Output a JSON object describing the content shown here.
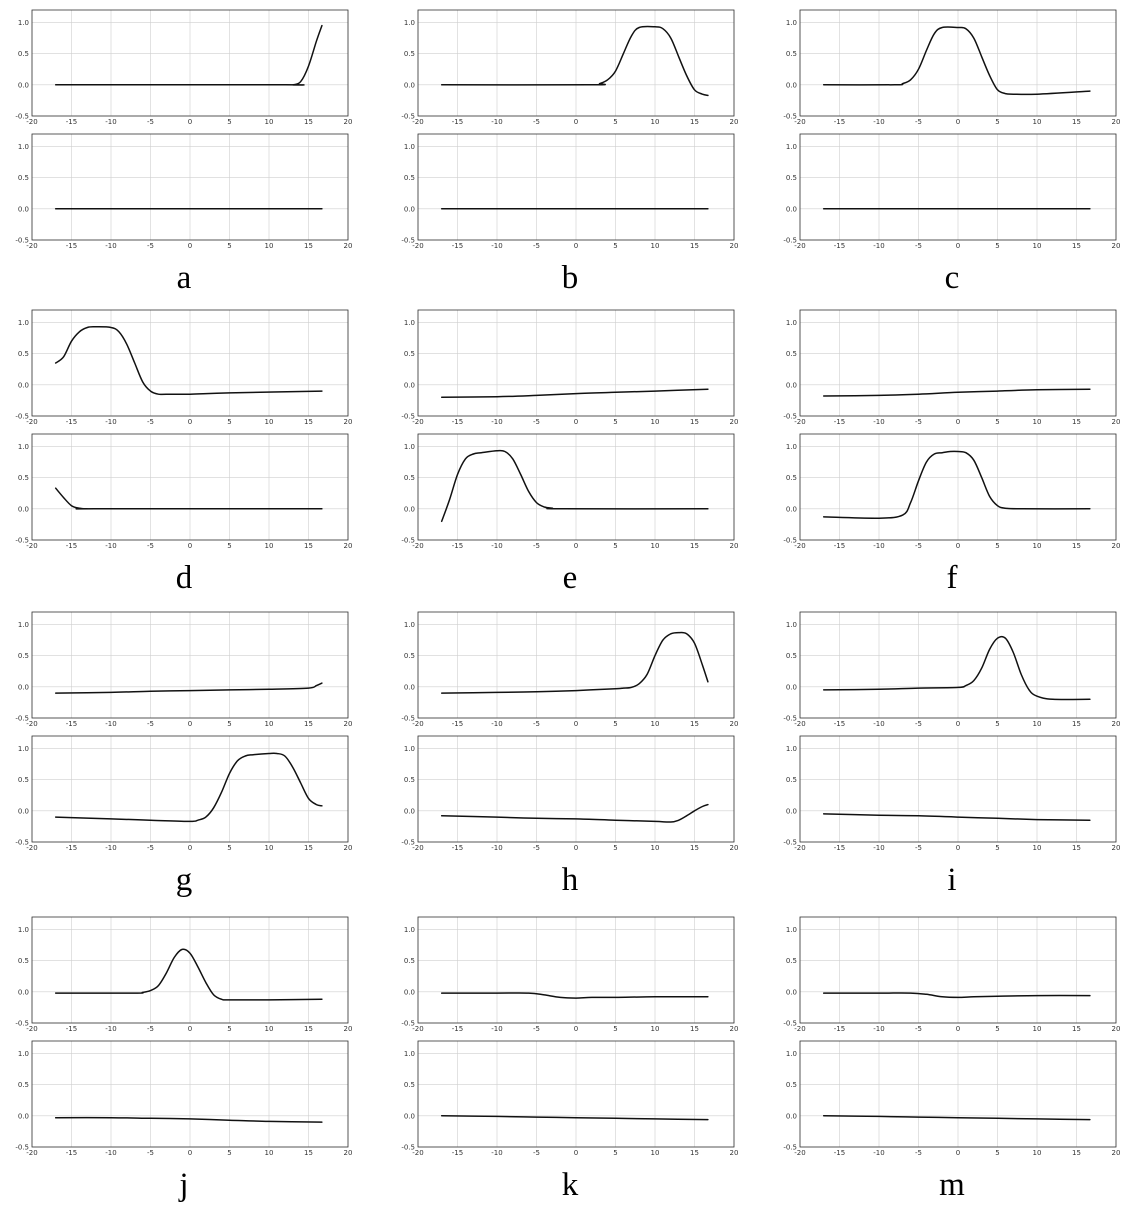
{
  "chart_data": [
    {
      "type": "line",
      "label": "a",
      "top": {
        "xlim": [
          -20,
          20
        ],
        "ylim": [
          -0.5,
          1.2
        ],
        "x": [
          -17,
          12,
          13,
          14,
          15,
          16,
          16.7
        ],
        "y": [
          0,
          0,
          0,
          0.05,
          0.3,
          0.7,
          0.95
        ]
      },
      "bottom": {
        "xlim": [
          -20,
          20
        ],
        "ylim": [
          -0.5,
          1.2
        ],
        "x": [
          -17,
          16.7
        ],
        "y": [
          0,
          0
        ]
      }
    },
    {
      "type": "line",
      "label": "b",
      "top": {
        "xlim": [
          -20,
          20
        ],
        "ylim": [
          -0.5,
          1.2
        ],
        "x": [
          -17,
          2,
          3,
          4,
          5,
          6,
          7,
          8,
          10,
          11,
          12,
          13,
          14,
          15,
          16,
          16.7
        ],
        "y": [
          0,
          0,
          0.02,
          0.08,
          0.22,
          0.5,
          0.78,
          0.92,
          0.93,
          0.9,
          0.75,
          0.45,
          0.15,
          -0.08,
          -0.15,
          -0.17
        ]
      },
      "bottom": {
        "xlim": [
          -20,
          20
        ],
        "ylim": [
          -0.5,
          1.2
        ],
        "x": [
          -17,
          16.7
        ],
        "y": [
          0,
          0
        ]
      }
    },
    {
      "type": "line",
      "label": "c",
      "top": {
        "xlim": [
          -20,
          20
        ],
        "ylim": [
          -0.5,
          1.2
        ],
        "x": [
          -17,
          -8,
          -7,
          -6,
          -5,
          -4,
          -3,
          -2,
          0,
          1,
          2,
          3,
          4,
          5,
          6,
          7,
          10,
          16.7
        ],
        "y": [
          0,
          0,
          0.02,
          0.08,
          0.25,
          0.55,
          0.82,
          0.92,
          0.92,
          0.9,
          0.75,
          0.45,
          0.15,
          -0.08,
          -0.14,
          -0.15,
          -0.15,
          -0.1
        ]
      },
      "bottom": {
        "xlim": [
          -20,
          20
        ],
        "ylim": [
          -0.5,
          1.2
        ],
        "x": [
          -17,
          16.7
        ],
        "y": [
          0,
          0
        ]
      }
    },
    {
      "type": "line",
      "label": "d",
      "top": {
        "xlim": [
          -20,
          20
        ],
        "ylim": [
          -0.5,
          1.2
        ],
        "x": [
          -17,
          -16,
          -15,
          -14,
          -13,
          -12,
          -10,
          -9,
          -8,
          -7,
          -6,
          -5,
          -4,
          -3,
          0,
          5,
          16.7
        ],
        "y": [
          0.35,
          0.45,
          0.7,
          0.85,
          0.92,
          0.93,
          0.92,
          0.85,
          0.65,
          0.35,
          0.05,
          -0.1,
          -0.15,
          -0.15,
          -0.15,
          -0.13,
          -0.1
        ]
      },
      "bottom": {
        "xlim": [
          -20,
          20
        ],
        "ylim": [
          -0.5,
          1.2
        ],
        "x": [
          -17,
          -16,
          -15,
          -14,
          -13,
          -12,
          16.7
        ],
        "y": [
          0.33,
          0.18,
          0.05,
          0.01,
          0,
          0,
          0
        ]
      }
    },
    {
      "type": "line",
      "label": "e",
      "top": {
        "xlim": [
          -20,
          20
        ],
        "ylim": [
          -0.5,
          1.2
        ],
        "x": [
          -17,
          -10,
          -5,
          0,
          5,
          10,
          16.7
        ],
        "y": [
          -0.2,
          -0.19,
          -0.17,
          -0.14,
          -0.12,
          -0.1,
          -0.07
        ]
      },
      "bottom": {
        "xlim": [
          -20,
          20
        ],
        "ylim": [
          -0.5,
          1.2
        ],
        "x": [
          -17,
          -16,
          -15,
          -14,
          -13,
          -12,
          -10,
          -9,
          -8,
          -7,
          -6,
          -5,
          -4,
          -3,
          -2,
          16.7
        ],
        "y": [
          -0.2,
          0.15,
          0.55,
          0.8,
          0.88,
          0.9,
          0.93,
          0.92,
          0.8,
          0.55,
          0.28,
          0.1,
          0.03,
          0.01,
          0,
          0
        ]
      }
    },
    {
      "type": "line",
      "label": "f",
      "top": {
        "xlim": [
          -20,
          20
        ],
        "ylim": [
          -0.5,
          1.2
        ],
        "x": [
          -17,
          -10,
          -5,
          0,
          5,
          10,
          16.7
        ],
        "y": [
          -0.18,
          -0.17,
          -0.15,
          -0.12,
          -0.1,
          -0.08,
          -0.07
        ]
      },
      "bottom": {
        "xlim": [
          -20,
          20
        ],
        "ylim": [
          -0.5,
          1.2
        ],
        "x": [
          -17,
          -10,
          -7,
          -6,
          -5,
          -4,
          -3,
          -2,
          -1,
          0,
          1,
          2,
          3,
          4,
          5,
          6,
          8,
          16.7
        ],
        "y": [
          -0.13,
          -0.15,
          -0.1,
          0.1,
          0.45,
          0.75,
          0.88,
          0.9,
          0.92,
          0.92,
          0.9,
          0.78,
          0.5,
          0.2,
          0.05,
          0.01,
          0,
          0
        ]
      }
    },
    {
      "type": "line",
      "label": "g",
      "top": {
        "xlim": [
          -20,
          20
        ],
        "ylim": [
          -0.5,
          1.2
        ],
        "x": [
          -17,
          -10,
          -5,
          0,
          5,
          10,
          15,
          16,
          16.7
        ],
        "y": [
          -0.1,
          -0.09,
          -0.07,
          -0.06,
          -0.05,
          -0.04,
          -0.02,
          0.02,
          0.06
        ]
      },
      "bottom": {
        "xlim": [
          -20,
          20
        ],
        "ylim": [
          -0.5,
          1.2
        ],
        "x": [
          -17,
          -10,
          -5,
          0,
          1,
          2,
          3,
          4,
          5,
          6,
          7,
          8,
          10,
          11,
          12,
          13,
          14,
          15,
          16,
          16.7
        ],
        "y": [
          -0.1,
          -0.13,
          -0.15,
          -0.17,
          -0.15,
          -0.1,
          0.05,
          0.3,
          0.6,
          0.8,
          0.88,
          0.9,
          0.92,
          0.92,
          0.88,
          0.7,
          0.45,
          0.2,
          0.1,
          0.08
        ]
      }
    },
    {
      "type": "line",
      "label": "h",
      "top": {
        "xlim": [
          -20,
          20
        ],
        "ylim": [
          -0.5,
          1.2
        ],
        "x": [
          -17,
          -10,
          -5,
          0,
          5,
          6,
          7,
          8,
          9,
          10,
          11,
          12,
          13,
          14,
          15,
          16,
          16.7
        ],
        "y": [
          -0.1,
          -0.09,
          -0.08,
          -0.06,
          -0.03,
          -0.02,
          -0.01,
          0.05,
          0.2,
          0.5,
          0.75,
          0.85,
          0.87,
          0.85,
          0.7,
          0.35,
          0.08
        ]
      },
      "bottom": {
        "xlim": [
          -20,
          20
        ],
        "ylim": [
          -0.5,
          1.2
        ],
        "x": [
          -17,
          -10,
          -5,
          0,
          5,
          10,
          12,
          13,
          14,
          15,
          16,
          16.7
        ],
        "y": [
          -0.08,
          -0.1,
          -0.12,
          -0.13,
          -0.15,
          -0.17,
          -0.18,
          -0.15,
          -0.08,
          0,
          0.07,
          0.1
        ]
      }
    },
    {
      "type": "line",
      "label": "i",
      "top": {
        "xlim": [
          -20,
          20
        ],
        "ylim": [
          -0.5,
          1.2
        ],
        "x": [
          -17,
          -10,
          -5,
          0,
          1,
          2,
          3,
          4,
          5,
          6,
          7,
          8,
          9,
          10,
          12,
          16.7
        ],
        "y": [
          -0.05,
          -0.04,
          -0.02,
          -0.01,
          0.02,
          0.1,
          0.3,
          0.6,
          0.78,
          0.78,
          0.55,
          0.2,
          -0.05,
          -0.15,
          -0.2,
          -0.2
        ]
      },
      "bottom": {
        "xlim": [
          -20,
          20
        ],
        "ylim": [
          -0.5,
          1.2
        ],
        "x": [
          -17,
          -10,
          -5,
          0,
          5,
          10,
          16.7
        ],
        "y": [
          -0.05,
          -0.07,
          -0.08,
          -0.1,
          -0.12,
          -0.14,
          -0.15
        ]
      }
    },
    {
      "type": "line",
      "label": "j",
      "top": {
        "xlim": [
          -20,
          20
        ],
        "ylim": [
          -0.5,
          1.2
        ],
        "x": [
          -17,
          -7,
          -6,
          -5,
          -4,
          -3,
          -2,
          -1,
          0,
          1,
          2,
          3,
          4,
          5,
          10,
          16.7
        ],
        "y": [
          -0.02,
          -0.02,
          -0.01,
          0.02,
          0.1,
          0.3,
          0.55,
          0.68,
          0.62,
          0.4,
          0.15,
          -0.05,
          -0.12,
          -0.13,
          -0.13,
          -0.12
        ]
      },
      "bottom": {
        "xlim": [
          -20,
          20
        ],
        "ylim": [
          -0.5,
          1.2
        ],
        "x": [
          -17,
          -10,
          -5,
          0,
          5,
          10,
          16.7
        ],
        "y": [
          -0.03,
          -0.03,
          -0.04,
          -0.05,
          -0.07,
          -0.09,
          -0.1
        ]
      }
    },
    {
      "type": "line",
      "label": "k",
      "top": {
        "xlim": [
          -20,
          20
        ],
        "ylim": [
          -0.5,
          1.2
        ],
        "x": [
          -17,
          -10,
          -6,
          -4,
          -2,
          0,
          2,
          5,
          10,
          16.7
        ],
        "y": [
          -0.02,
          -0.02,
          -0.02,
          -0.05,
          -0.09,
          -0.1,
          -0.09,
          -0.09,
          -0.08,
          -0.08
        ]
      },
      "bottom": {
        "xlim": [
          -20,
          20
        ],
        "ylim": [
          -0.5,
          1.2
        ],
        "x": [
          -17,
          -10,
          -5,
          0,
          5,
          10,
          16.7
        ],
        "y": [
          0,
          -0.01,
          -0.02,
          -0.03,
          -0.04,
          -0.05,
          -0.06
        ]
      }
    },
    {
      "type": "line",
      "label": "m",
      "top": {
        "xlim": [
          -20,
          20
        ],
        "ylim": [
          -0.5,
          1.2
        ],
        "x": [
          -17,
          -10,
          -6,
          -4,
          -2,
          0,
          2,
          5,
          10,
          16.7
        ],
        "y": [
          -0.02,
          -0.02,
          -0.02,
          -0.04,
          -0.08,
          -0.09,
          -0.08,
          -0.07,
          -0.06,
          -0.06
        ]
      },
      "bottom": {
        "xlim": [
          -20,
          20
        ],
        "ylim": [
          -0.5,
          1.2
        ],
        "x": [
          -17,
          -10,
          -5,
          0,
          5,
          10,
          16.7
        ],
        "y": [
          0,
          -0.01,
          -0.02,
          -0.03,
          -0.04,
          -0.05,
          -0.06
        ]
      }
    }
  ],
  "axis": {
    "xticks": [
      "-20",
      "-15",
      "-10",
      "-5",
      "0",
      "5",
      "10",
      "15",
      "20"
    ],
    "yticks": [
      "-0.5",
      "0.0",
      "0.5",
      "1.0"
    ]
  }
}
